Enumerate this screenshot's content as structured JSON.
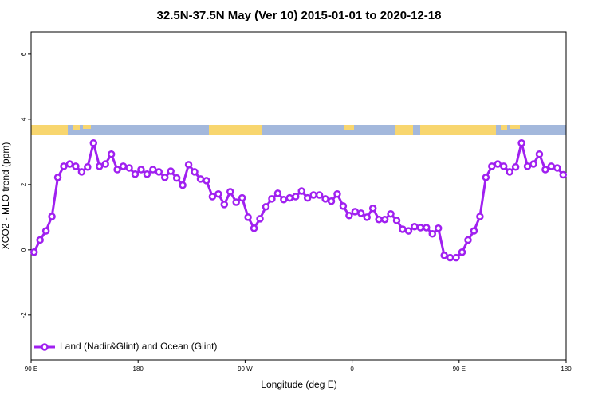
{
  "chart_data": {
    "type": "line",
    "title": "32.5N-37.5N May (Ver 10)   2015-01-01 to 2020-12-18",
    "x_label": "Longitude (deg E)",
    "y_label": "XCO2 - MLO trend (ppm)",
    "xlim": [
      90,
      540
    ],
    "xticks": [
      {
        "value": 90,
        "label": "90 E"
      },
      {
        "value": 180,
        "label": "180"
      },
      {
        "value": 270,
        "label": "90 W"
      },
      {
        "value": 360,
        "label": "0"
      },
      {
        "value": 450,
        "label": "90 E"
      },
      {
        "value": 540,
        "label": "180"
      }
    ],
    "ylim": [
      -3.37,
      6.68
    ],
    "yticks": [
      -2,
      0,
      2,
      4,
      6
    ],
    "legend": "bottom-left",
    "x": [
      92.5,
      97.5,
      102.5,
      107.5,
      112.5,
      117.5,
      122.5,
      127.5,
      132.5,
      137.5,
      142.5,
      147.5,
      152.5,
      157.5,
      162.5,
      167.5,
      172.5,
      177.5,
      182.5,
      187.5,
      192.5,
      197.5,
      202.5,
      207.5,
      212.5,
      217.5,
      222.5,
      227.5,
      232.5,
      237.5,
      242.5,
      247.5,
      252.5,
      257.5,
      262.5,
      267.5,
      272.5,
      277.5,
      282.5,
      287.5,
      292.5,
      297.5,
      302.5,
      307.5,
      312.5,
      317.5,
      322.5,
      327.5,
      332.5,
      337.5,
      342.5,
      347.5,
      352.5,
      357.5,
      362.5,
      367.5,
      372.5,
      377.5,
      382.5,
      387.5,
      392.5,
      397.5,
      402.5,
      407.5,
      412.5,
      417.5,
      422.5,
      427.5,
      432.5,
      437.5,
      442.5,
      447.5,
      452.5,
      457.5,
      462.5,
      467.5,
      472.5,
      477.5,
      482.5,
      487.5,
      492.5,
      497.5,
      502.5,
      507.5,
      512.5,
      517.5,
      522.5,
      527.5,
      532.5,
      537.5
    ],
    "series": [
      {
        "name": "Land (Nadir&Glint) and Ocean (Glint)",
        "color": "#a020f0",
        "values": [
          -0.07,
          0.3,
          0.58,
          1.02,
          2.22,
          2.56,
          2.63,
          2.56,
          2.39,
          2.54,
          3.27,
          2.56,
          2.63,
          2.93,
          2.46,
          2.56,
          2.51,
          2.32,
          2.46,
          2.32,
          2.46,
          2.39,
          2.22,
          2.41,
          2.2,
          1.98,
          2.61,
          2.39,
          2.17,
          2.12,
          1.63,
          1.71,
          1.39,
          1.78,
          1.46,
          1.59,
          1.0,
          0.66,
          0.95,
          1.32,
          1.56,
          1.73,
          1.54,
          1.59,
          1.63,
          1.8,
          1.59,
          1.68,
          1.68,
          1.56,
          1.49,
          1.71,
          1.34,
          1.05,
          1.17,
          1.12,
          1.0,
          1.27,
          0.93,
          0.93,
          1.1,
          0.9,
          0.63,
          0.58,
          0.71,
          0.68,
          0.68,
          0.49,
          0.66,
          -0.17,
          -0.24,
          -0.24,
          -0.07,
          0.3,
          0.58,
          1.02,
          2.22,
          2.56,
          2.63,
          2.56,
          2.39,
          2.54,
          3.27,
          2.56,
          2.63,
          2.93,
          2.46,
          2.56,
          2.51,
          2.3
        ]
      }
    ]
  }
}
